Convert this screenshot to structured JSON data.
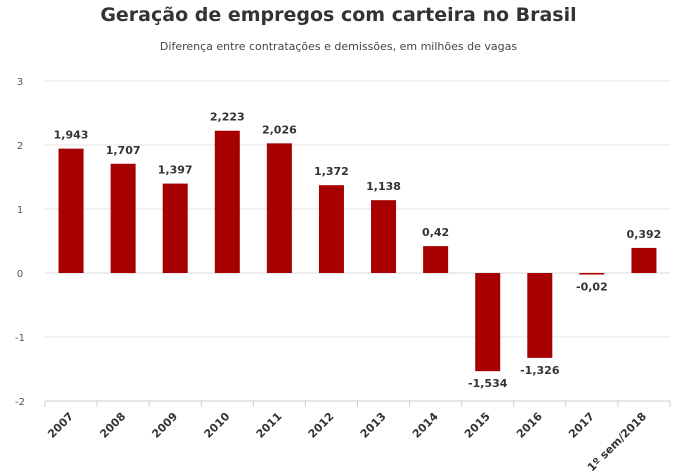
{
  "chart_data": {
    "type": "bar",
    "title": "Geração de empregos com carteira no Brasil",
    "subtitle": "Diferença entre contratações e  demissões, em milhões de vagas",
    "categories": [
      "2007",
      "2008",
      "2009",
      "2010",
      "2011",
      "2012",
      "2013",
      "2014",
      "2015",
      "2016",
      "2017",
      "1º sem/2018"
    ],
    "values": [
      1.943,
      1.707,
      1.397,
      2.223,
      2.026,
      1.372,
      1.138,
      0.42,
      -1.534,
      -1.326,
      -0.02,
      0.392
    ],
    "value_labels": [
      "1,943",
      "1,707",
      "1,397",
      "2,223",
      "2,026",
      "1,372",
      "1,138",
      "0,42",
      "-1,534",
      "-1,326",
      "-0,02",
      "0,392"
    ],
    "ylim": [
      -2,
      3
    ],
    "yticks": [
      3,
      2,
      1,
      0,
      -1,
      -2
    ],
    "ytick_labels": [
      "3",
      "2",
      "1",
      "0",
      "-1",
      "-2"
    ],
    "grid": true,
    "xlabel": "",
    "ylabel": "",
    "colors": {
      "bar": "#a60000",
      "grid": "#e6e6e6",
      "axis": "#cccccc"
    }
  }
}
